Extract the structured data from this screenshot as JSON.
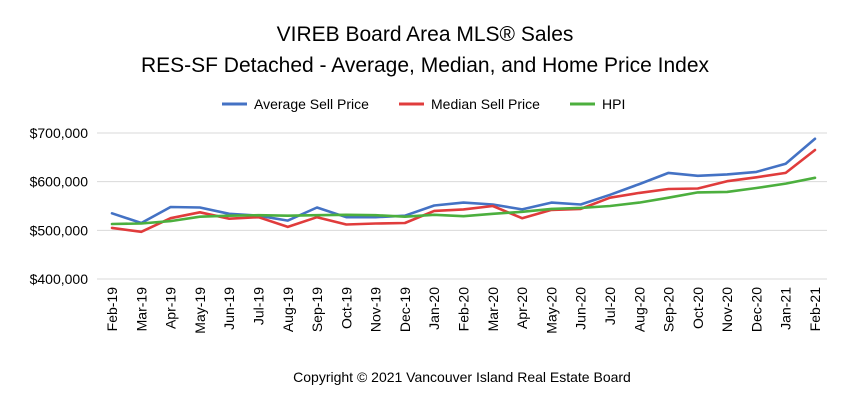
{
  "chart_data": {
    "type": "line",
    "title_lines": [
      "VIREB Board Area MLS® Sales",
      "RES-SF Detached - Average, Median, and Home Price Index"
    ],
    "xlabel": "",
    "ylabel": "",
    "ylim": [
      400000,
      700000
    ],
    "yticks": [
      400000,
      500000,
      600000,
      700000
    ],
    "ytick_labels": [
      "$400,000",
      "$500,000",
      "$600,000",
      "$700,000"
    ],
    "grid": true,
    "legend_position": "top",
    "categories": [
      "Feb-19",
      "Mar-19",
      "Apr-19",
      "May-19",
      "Jun-19",
      "Jul-19",
      "Aug-19",
      "Sep-19",
      "Oct-19",
      "Nov-19",
      "Dec-19",
      "Jan-20",
      "Feb-20",
      "Mar-20",
      "Apr-20",
      "May-20",
      "Jun-20",
      "Jul-20",
      "Aug-20",
      "Sep-20",
      "Oct-20",
      "Nov-20",
      "Dec-20",
      "Jan-21",
      "Feb-21"
    ],
    "series": [
      {
        "name": "Average Sell Price",
        "color": "#4472c4",
        "values": [
          535000,
          515000,
          548000,
          547000,
          534000,
          530000,
          520000,
          547000,
          527000,
          527000,
          530000,
          551000,
          557000,
          553000,
          543000,
          557000,
          553000,
          573000,
          595000,
          618000,
          612000,
          615000,
          620000,
          637000,
          688000
        ]
      },
      {
        "name": "Median Sell Price",
        "color": "#e03c3c",
        "values": [
          505000,
          497000,
          525000,
          537000,
          524000,
          527000,
          507000,
          527000,
          512000,
          514000,
          515000,
          540000,
          543000,
          550000,
          525000,
          542000,
          544000,
          567000,
          577000,
          585000,
          586000,
          601000,
          609000,
          618000,
          665000
        ]
      },
      {
        "name": "HPI",
        "color": "#4caf3e",
        "values": [
          513000,
          514000,
          519000,
          528000,
          530000,
          531000,
          530000,
          531000,
          532000,
          531000,
          528000,
          532000,
          529000,
          534000,
          538000,
          544000,
          546000,
          550000,
          557000,
          567000,
          578000,
          579000,
          587000,
          596000,
          608000
        ]
      }
    ]
  },
  "footer": {
    "copyright": "Copyright © 2021 Vancouver Island Real Estate Board"
  }
}
